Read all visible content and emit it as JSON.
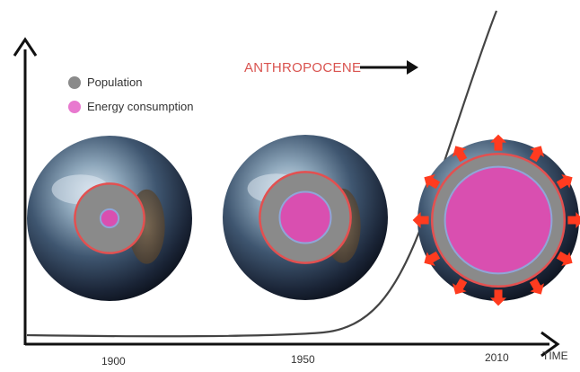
{
  "legend": [
    {
      "label": "Population",
      "color": "#8a8a8a"
    },
    {
      "label": "Energy consumption",
      "color": "#e879cf"
    }
  ],
  "annotation": {
    "label": "ANTHROPOCENE",
    "color": "#d9534f"
  },
  "axis": {
    "x_label": "TIME"
  },
  "periods": [
    {
      "year": "1900",
      "population_scale": 0.42,
      "energy_scale": 0.11
    },
    {
      "year": "1950",
      "population_scale": 0.55,
      "energy_scale": 0.31
    },
    {
      "year": "2010",
      "population_scale": 0.82,
      "energy_scale": 0.66,
      "expanding": true
    }
  ],
  "colors": {
    "population": "#8a8a8a",
    "energy": "#d94fb0",
    "ring_outline": "#e35050",
    "expansion_arrows": "#ff3b1f",
    "curve": "#444444",
    "axes": "#111111"
  }
}
